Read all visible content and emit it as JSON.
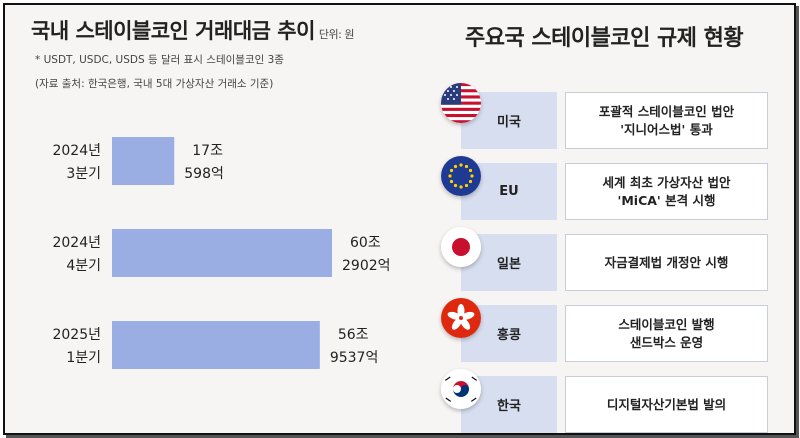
{
  "left": {
    "title": "국내 스테이블코인 거래대금 추이",
    "unit": "단위: 원",
    "note1": "* USDT, USDC, USDS 등 달러 표시 스테이블코인 3종",
    "note2": "(자료 출처: 한국은행, 국내 5대 가상자산 거래소 기준)"
  },
  "chart_data": {
    "type": "bar",
    "orientation": "horizontal",
    "title": "국내 스테이블코인 거래대금 추이",
    "unit": "단위: 원",
    "categories": [
      "2024년 3분기",
      "2024년 4분기",
      "2025년 1분기"
    ],
    "category_lines": [
      [
        "2024년",
        "3분기"
      ],
      [
        "2024년",
        "4분기"
      ],
      [
        "2025년",
        "1분기"
      ]
    ],
    "values": [
      17.0598,
      60.2902,
      56.9537
    ],
    "value_labels": [
      [
        "17조",
        "598억"
      ],
      [
        "60조",
        "2902억"
      ],
      [
        "56조",
        "9537억"
      ]
    ],
    "value_unit": "조 원",
    "bar_color": "#9aaee3",
    "grid": false,
    "legend": "none"
  },
  "right": {
    "title": "주요국 스테이블코인 규제 현황",
    "rows": [
      {
        "country": "미국",
        "desc": "포괄적 스테이블코인 법안\n'지니어스법' 통과",
        "flag": "us-flag-icon"
      },
      {
        "country": "EU",
        "desc": "세계 최초 가상자산 법안\n'MiCA' 본격 시행",
        "flag": "eu-flag-icon"
      },
      {
        "country": "일본",
        "desc": "자금결제법 개정안 시행",
        "flag": "japan-flag-icon"
      },
      {
        "country": "홍콩",
        "desc": "스테이블코인 발행\n샌드박스 운영",
        "flag": "hongkong-flag-icon"
      },
      {
        "country": "한국",
        "desc": "디지털자산기본법 발의",
        "flag": "korea-flag-icon"
      }
    ]
  },
  "colors": {
    "background": "#f7f5f3",
    "bar": "#9aaee3",
    "country_box": "#d7def0",
    "desc_box": "#ffffff"
  }
}
